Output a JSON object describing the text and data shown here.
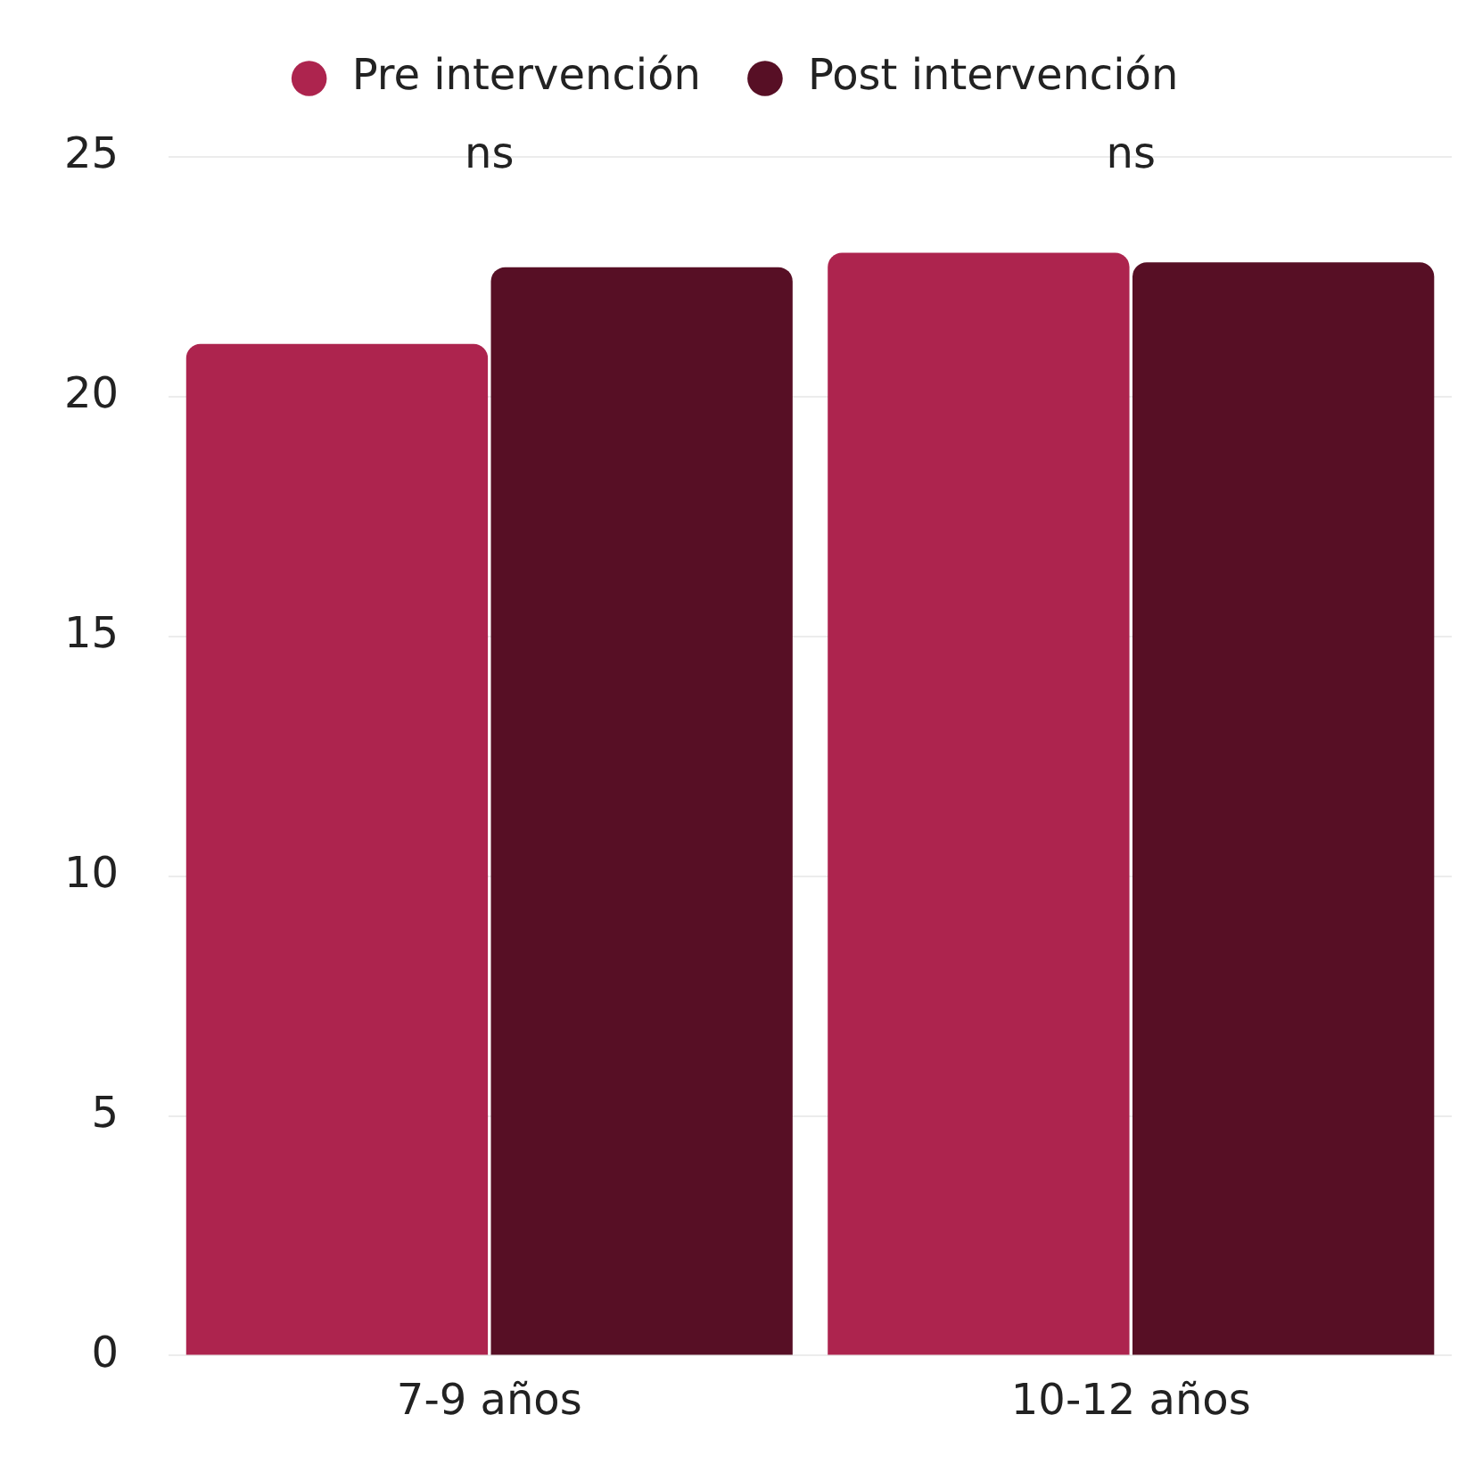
{
  "chart_data": {
    "type": "bar",
    "categories": [
      "7-9 años",
      "10-12 años"
    ],
    "series": [
      {
        "name": "Pre intervención",
        "color": "#ad244e",
        "values": [
          21.1,
          23.0
        ]
      },
      {
        "name": "Post intervención",
        "color": "#570f25",
        "values": [
          22.7,
          22.8
        ]
      }
    ],
    "ylim": [
      0,
      25
    ],
    "yticks": [
      0,
      5,
      10,
      15,
      20,
      25
    ],
    "grid": "y",
    "legend": "top",
    "annotations": [
      "ns",
      "ns"
    ]
  }
}
